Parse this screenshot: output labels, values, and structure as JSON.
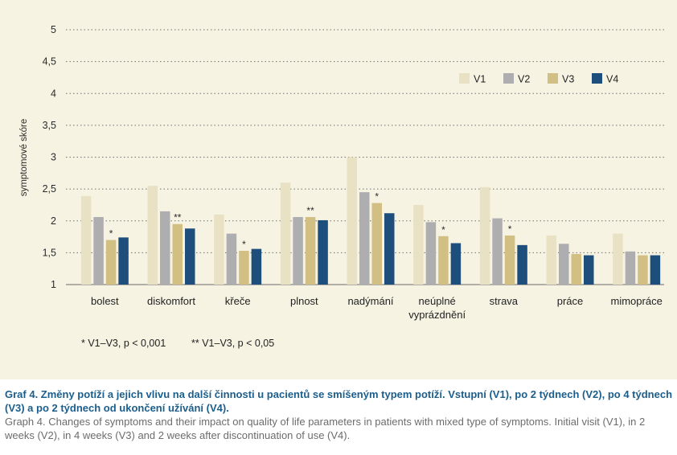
{
  "chart_data": {
    "type": "bar",
    "ylabel": "symptomové skóre",
    "ylim": [
      1,
      5
    ],
    "yticks": [
      "1",
      "1,5",
      "2",
      "2,5",
      "3",
      "3,5",
      "4",
      "4,5",
      "5"
    ],
    "grid": true,
    "legend_position": "top-right",
    "categories": [
      "bolest",
      "diskomfort",
      "křeče",
      "plnost",
      "nadýmání",
      "neúplné vyprázdnění",
      "strava",
      "práce",
      "mimopráce"
    ],
    "series": [
      {
        "name": "V1",
        "color": "#e9e1c3",
        "values": [
          2.39,
          2.55,
          2.1,
          2.6,
          3.0,
          2.25,
          2.53,
          1.77,
          1.8
        ]
      },
      {
        "name": "V2",
        "color": "#aeaeb0",
        "values": [
          2.06,
          2.15,
          1.8,
          2.06,
          2.45,
          1.98,
          2.04,
          1.64,
          1.52
        ]
      },
      {
        "name": "V3",
        "color": "#d2bf83",
        "values": [
          1.7,
          1.95,
          1.53,
          2.06,
          2.28,
          1.76,
          1.77,
          1.48,
          1.46
        ]
      },
      {
        "name": "V4",
        "color": "#1d4e7c",
        "values": [
          1.74,
          1.88,
          1.56,
          2.01,
          2.12,
          1.65,
          1.62,
          1.46,
          1.46
        ]
      }
    ],
    "annotations": [
      "*",
      "**",
      "*",
      "**",
      "*",
      "*",
      "*",
      "",
      ""
    ],
    "footnotes": [
      "* V1–V3, p < 0,001",
      "** V1–V3, p < 0,05"
    ]
  },
  "caption": {
    "czech": "Graf 4. Změny potíží a jejich vlivu na další činnosti u pacientů se smíšeným typem potíží. Vstupní (V1), po 2 týdnech (V2), po 4 týdnech (V3) a po 2 týdnech od ukončení užívání (V4).",
    "english": "Graph 4. Changes of symptoms and their impact on quality of life parameters in patients with mixed type of symptoms. Initial visit (V1), in 2 weeks (V2), in 4 weeks (V3) and 2 weeks after discontinuation of use (V4)."
  }
}
